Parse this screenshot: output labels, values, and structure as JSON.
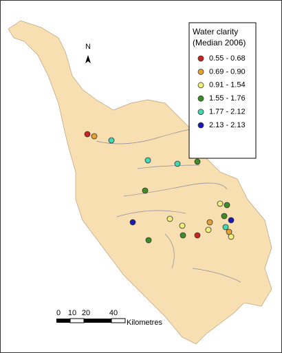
{
  "legend": {
    "title": [
      "Water clarity",
      "(Median 2006)"
    ],
    "items": [
      {
        "label": "0.55 - 0.68",
        "color": "#cc2222"
      },
      {
        "label": "0.69 - 0.90",
        "color": "#e8a030"
      },
      {
        "label": "0.91 - 1.54",
        "color": "#f0f07a"
      },
      {
        "label": "1.55 - 1.76",
        "color": "#3c8c28"
      },
      {
        "label": "1.77 - 2.12",
        "color": "#40d8b0"
      },
      {
        "label": "2.13 - 2.13",
        "color": "#1a1ab0"
      }
    ]
  },
  "north": "N",
  "scale": {
    "ticks": [
      "0",
      "10",
      "20",
      "40"
    ],
    "unit": "Kilometres"
  }
}
